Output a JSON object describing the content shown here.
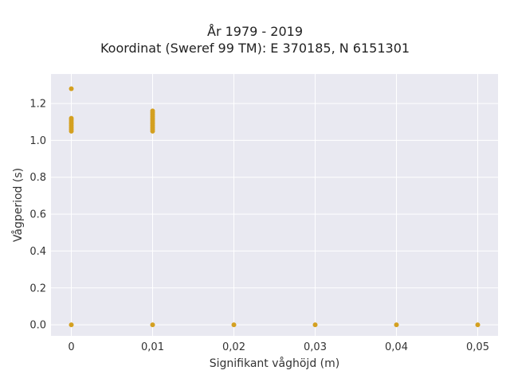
{
  "chart_data": {
    "type": "scatter",
    "title": [
      "År 1979 - 2019",
      "Koordinat (Sweref 99 TM): E 370185, N 6151301"
    ],
    "xlabel": "Signifikant våghöjd (m)",
    "ylabel": "Vågperiod (s)",
    "xlim": [
      -0.0025,
      0.0525
    ],
    "ylim": [
      -0.06,
      1.36
    ],
    "x_ticks": [
      0,
      0.01,
      0.02,
      0.03,
      0.04,
      0.05
    ],
    "x_tick_labels": [
      "0",
      "0,01",
      "0,02",
      "0,03",
      "0,04",
      "0,05"
    ],
    "y_ticks": [
      0,
      0.2,
      0.4,
      0.6,
      0.8,
      1.0,
      1.2
    ],
    "y_tick_labels": [
      "0.0",
      "0.2",
      "0.4",
      "0.6",
      "0.8",
      "1.0",
      "1.2"
    ],
    "grid": true,
    "background_color": "#e9e9f1",
    "marker_color": "#d4a020",
    "points": [
      {
        "x": 0,
        "y": 1.28
      },
      {
        "x": 0,
        "y": 1.12
      },
      {
        "x": 0,
        "y": 1.11
      },
      {
        "x": 0,
        "y": 1.1
      },
      {
        "x": 0,
        "y": 1.09
      },
      {
        "x": 0,
        "y": 1.08
      },
      {
        "x": 0,
        "y": 1.07
      },
      {
        "x": 0,
        "y": 1.06
      },
      {
        "x": 0,
        "y": 1.05
      },
      {
        "x": 0,
        "y": 0
      },
      {
        "x": 0.01,
        "y": 1.16
      },
      {
        "x": 0.01,
        "y": 1.15
      },
      {
        "x": 0.01,
        "y": 1.14
      },
      {
        "x": 0.01,
        "y": 1.13
      },
      {
        "x": 0.01,
        "y": 1.12
      },
      {
        "x": 0.01,
        "y": 1.11
      },
      {
        "x": 0.01,
        "y": 1.1
      },
      {
        "x": 0.01,
        "y": 1.09
      },
      {
        "x": 0.01,
        "y": 1.08
      },
      {
        "x": 0.01,
        "y": 1.07
      },
      {
        "x": 0.01,
        "y": 1.06
      },
      {
        "x": 0.01,
        "y": 1.05
      },
      {
        "x": 0.01,
        "y": 0
      },
      {
        "x": 0.02,
        "y": 0
      },
      {
        "x": 0.03,
        "y": 0
      },
      {
        "x": 0.04,
        "y": 0
      },
      {
        "x": 0.05,
        "y": 0
      }
    ]
  }
}
